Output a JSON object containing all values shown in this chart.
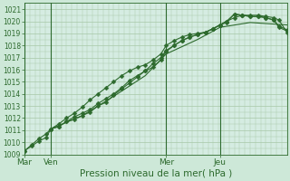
{
  "title": "",
  "xlabel": "Pression niveau de la mer( hPa )",
  "ylabel": "",
  "bg_color": "#cde8d8",
  "plot_bg_color": "#d5ece2",
  "line_color": "#2d6a2d",
  "grid_color": "#a8c8a8",
  "ylim": [
    1009,
    1021.5
  ],
  "yticks": [
    1009,
    1010,
    1011,
    1012,
    1013,
    1014,
    1015,
    1016,
    1017,
    1018,
    1019,
    1020,
    1021
  ],
  "day_labels": [
    "Mar",
    "Ven",
    "Mer",
    "Jeu"
  ],
  "day_positions": [
    0,
    0.1,
    0.54,
    0.745
  ],
  "total_steps": 1.0,
  "lines": [
    {
      "x": [
        0.0,
        0.028,
        0.055,
        0.083,
        0.1,
        0.13,
        0.16,
        0.19,
        0.22,
        0.25,
        0.28,
        0.31,
        0.34,
        0.37,
        0.4,
        0.43,
        0.46,
        0.49,
        0.52,
        0.54,
        0.57,
        0.6,
        0.63,
        0.66,
        0.69,
        0.72,
        0.745,
        0.77,
        0.8,
        0.83,
        0.86,
        0.89,
        0.92,
        0.95,
        0.97,
        1.0
      ],
      "y": [
        1009.3,
        1009.8,
        1010.3,
        1010.7,
        1011.1,
        1011.5,
        1012.0,
        1012.4,
        1012.9,
        1013.5,
        1014.0,
        1014.5,
        1015.0,
        1015.5,
        1015.9,
        1016.2,
        1016.4,
        1016.8,
        1017.3,
        1018.0,
        1018.4,
        1018.7,
        1018.9,
        1019.0,
        1019.1,
        1019.4,
        1019.7,
        1020.0,
        1020.3,
        1020.5,
        1020.5,
        1020.5,
        1020.4,
        1020.3,
        1020.1,
        1019.1
      ],
      "marker": "D",
      "markersize": 2.5
    },
    {
      "x": [
        0.0,
        0.028,
        0.055,
        0.083,
        0.1,
        0.13,
        0.16,
        0.19,
        0.22,
        0.25,
        0.28,
        0.31,
        0.34,
        0.37,
        0.4,
        0.43,
        0.46,
        0.49,
        0.52,
        0.54,
        0.57,
        0.6,
        0.63,
        0.66,
        0.69,
        0.72,
        0.745,
        0.77,
        0.8,
        0.83,
        0.86,
        0.89,
        0.92,
        0.95,
        0.97,
        1.0
      ],
      "y": [
        1009.3,
        1009.7,
        1010.1,
        1010.4,
        1011.1,
        1011.3,
        1011.7,
        1012.1,
        1012.4,
        1012.7,
        1013.2,
        1013.6,
        1014.0,
        1014.5,
        1015.1,
        1015.5,
        1015.9,
        1016.2,
        1016.8,
        1017.5,
        1018.0,
        1018.4,
        1018.7,
        1018.9,
        1019.1,
        1019.4,
        1019.7,
        1019.9,
        1020.6,
        1020.5,
        1020.4,
        1020.4,
        1020.3,
        1020.1,
        1019.5,
        1019.2
      ],
      "marker": "D",
      "markersize": 2.5
    },
    {
      "x": [
        0.1,
        0.13,
        0.16,
        0.19,
        0.22,
        0.25,
        0.28,
        0.31,
        0.34,
        0.37,
        0.4,
        0.43,
        0.46,
        0.49,
        0.52,
        0.54,
        0.57,
        0.6,
        0.63,
        0.66,
        0.69,
        0.72,
        0.745,
        0.77,
        0.8,
        0.83,
        0.86,
        0.89,
        0.92,
        0.95,
        0.97,
        1.0
      ],
      "y": [
        1011.1,
        1011.3,
        1011.7,
        1011.9,
        1012.2,
        1012.5,
        1013.0,
        1013.3,
        1013.9,
        1014.4,
        1014.9,
        1015.4,
        1015.9,
        1016.5,
        1017.0,
        1017.6,
        1018.0,
        1018.4,
        1018.7,
        1018.9,
        1019.1,
        1019.4,
        1019.7,
        1020.0,
        1020.6,
        1020.5,
        1020.4,
        1020.4,
        1020.3,
        1020.1,
        1019.6,
        1019.3
      ],
      "marker": "D",
      "markersize": 2.5
    },
    {
      "x": [
        0.1,
        0.22,
        0.34,
        0.46,
        0.54,
        0.66,
        0.745,
        0.86,
        1.0
      ],
      "y": [
        1011.1,
        1012.2,
        1013.8,
        1015.5,
        1017.3,
        1018.5,
        1019.5,
        1019.9,
        1019.7
      ],
      "marker": null,
      "markersize": 0
    }
  ]
}
